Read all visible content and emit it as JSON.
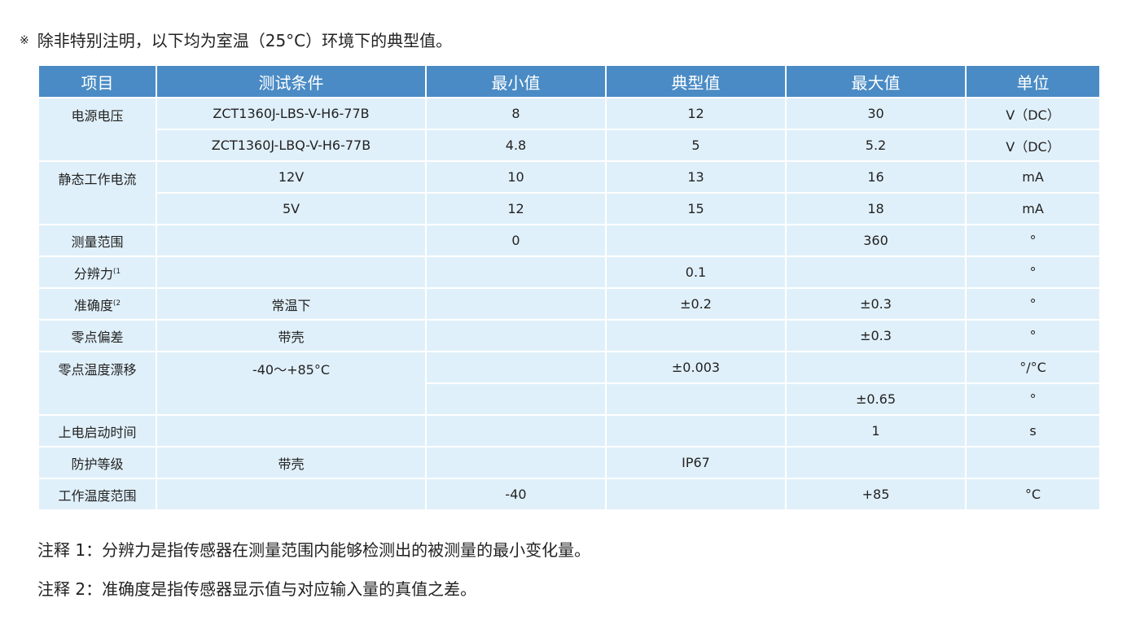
{
  "note": {
    "symbol": "※",
    "text": "除非特别注明，以下均为室温（25°C）环境下的典型值。"
  },
  "colors": {
    "header_bg": "#4a8bc5",
    "cell_bg": "#e0f0fa"
  },
  "table": {
    "headers": [
      "项目",
      "测试条件",
      "最小值",
      "典型值",
      "最大值",
      "单位"
    ],
    "rows": [
      {
        "item": "电源电压",
        "sup": "",
        "cond": "ZCT1360J-LBS-V-H6-77B",
        "min": "8",
        "typ": "12",
        "max": "30",
        "unit": "V（DC）"
      },
      {
        "item": null,
        "sup": "",
        "cond": "ZCT1360J-LBQ-V-H6-77B",
        "min": "4.8",
        "typ": "5",
        "max": "5.2",
        "unit": "V（DC）"
      },
      {
        "item": "静态工作电流",
        "sup": "",
        "cond": "12V",
        "min": "10",
        "typ": "13",
        "max": "16",
        "unit": "mA"
      },
      {
        "item": null,
        "sup": "",
        "cond": "5V",
        "min": "12",
        "typ": "15",
        "max": "18",
        "unit": "mA"
      },
      {
        "item": "测量范围",
        "sup": "",
        "cond": "",
        "min": "0",
        "typ": "",
        "max": "360",
        "unit": "°"
      },
      {
        "item": "分辨力",
        "sup": "(1",
        "cond": "",
        "min": "",
        "typ": "0.1",
        "max": "",
        "unit": "°"
      },
      {
        "item": "准确度",
        "sup": "(2",
        "cond": "常温下",
        "min": "",
        "typ": "±0.2",
        "max": "±0.3",
        "unit": "°"
      },
      {
        "item": "零点偏差",
        "sup": "",
        "cond": "带壳",
        "min": "",
        "typ": "",
        "max": "±0.3",
        "unit": "°"
      },
      {
        "item": "零点温度漂移",
        "sup": "",
        "cond": "-40～+85°C",
        "min": "",
        "typ": "±0.003",
        "max": "",
        "unit": "°/°C"
      },
      {
        "item": null,
        "sup": "",
        "cond": null,
        "min": "",
        "typ": "",
        "max": "±0.65",
        "unit": "°"
      },
      {
        "item": "上电启动时间",
        "sup": "",
        "cond": "",
        "min": "",
        "typ": "",
        "max": "1",
        "unit": "s"
      },
      {
        "item": "防护等级",
        "sup": "",
        "cond": "带壳",
        "min": "",
        "typ": "IP67",
        "max": "",
        "unit": ""
      },
      {
        "item": "工作温度范围",
        "sup": "",
        "cond": "",
        "min": "-40",
        "typ": "",
        "max": "+85",
        "unit": "°C"
      }
    ]
  },
  "footnotes": [
    "注释 1：分辨力是指传感器在测量范围内能够检测出的被测量的最小变化量。",
    "注释 2：准确度是指传感器显示值与对应输入量的真值之差。"
  ]
}
